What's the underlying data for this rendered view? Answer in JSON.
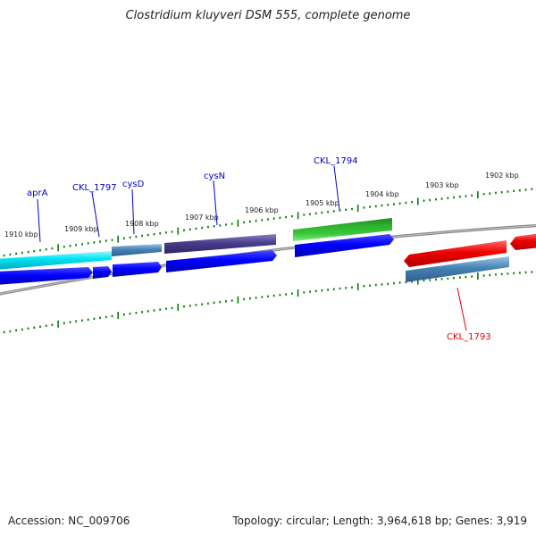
{
  "title": "Clostridium kluyveri DSM 555, complete genome",
  "footer": {
    "accession": "Accession: NC_009706",
    "summary": "Topology: circular; Length: 3,964,618 bp; Genes: 3,919"
  },
  "kbp_labels": [
    "1910 kbp",
    "1909 kbp",
    "1908 kbp",
    "1907 kbp",
    "1906 kbp",
    "1905 kbp",
    "1904 kbp",
    "1903 kbp",
    "1902 kbp"
  ],
  "genes": [
    {
      "name": "aprA",
      "color": "#0000c8"
    },
    {
      "name": "CKL_1797",
      "color": "#0000c8"
    },
    {
      "name": "cysD",
      "color": "#0000c8"
    },
    {
      "name": "cysN",
      "color": "#0000c8"
    },
    {
      "name": "CKL_1794",
      "color": "#0000c8"
    },
    {
      "name": "CKL_1793",
      "color": "#e00000"
    }
  ],
  "colors": {
    "backbone": "#777777",
    "tick": "#0a7a0a",
    "forward_cds": "#0000ff",
    "feature_cyan": "#00e0f0",
    "feature_steelblue": "#4682b4",
    "feature_purple": "#483d8b",
    "feature_green": "#22aa22",
    "reverse_feature": "#ee0000"
  }
}
